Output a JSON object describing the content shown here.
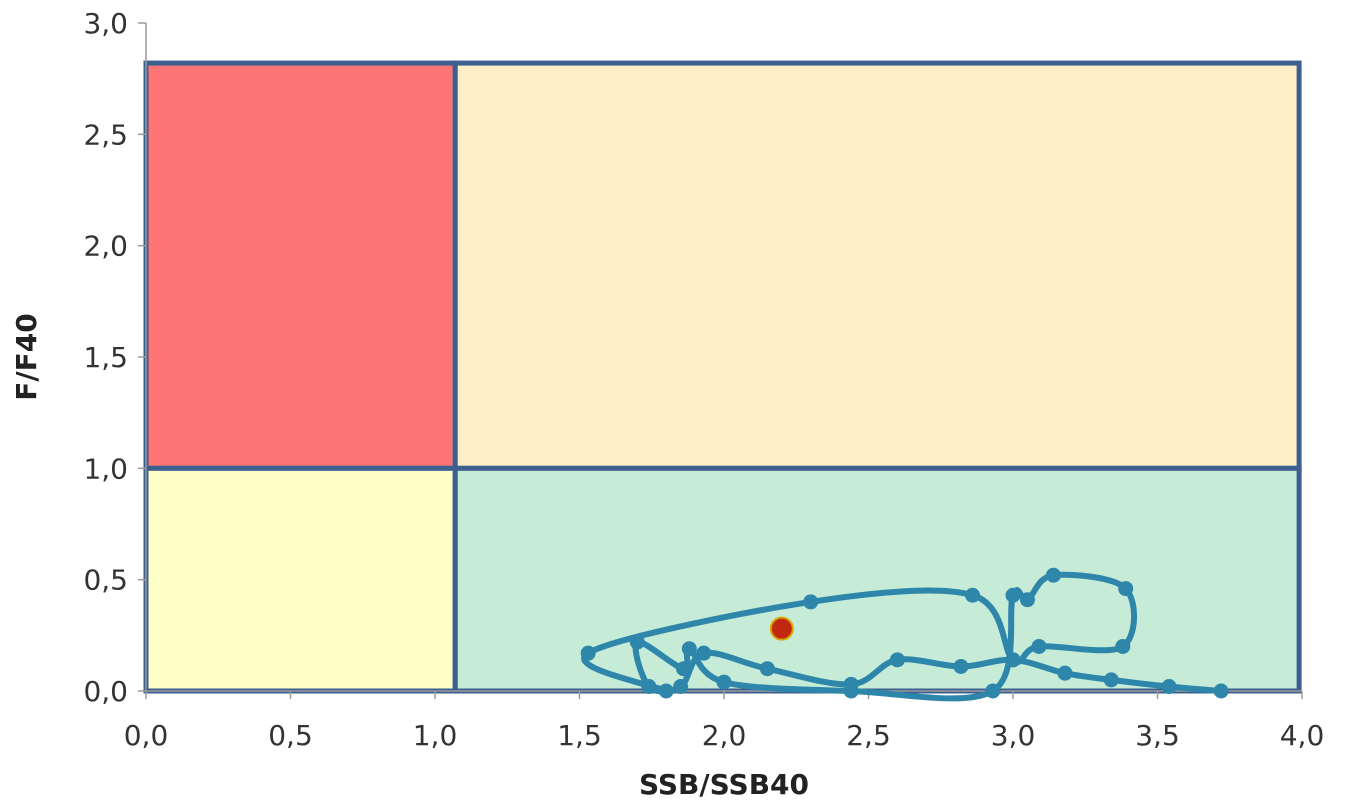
{
  "chart_data": {
    "type": "scatter",
    "title": "",
    "xlabel": "SSB/SSB40",
    "ylabel": "F/F40",
    "xlim": [
      0,
      4
    ],
    "ylim": [
      0,
      3
    ],
    "xticks": [
      "0,0",
      "0,5",
      "1,0",
      "1,5",
      "2,0",
      "2,5",
      "3,0",
      "3,5",
      "4,0"
    ],
    "yticks": [
      "0,0",
      "0,5",
      "1,0",
      "1,5",
      "2,0",
      "2,5",
      "3,0"
    ],
    "grid": false,
    "legend": "none",
    "reference_lines": {
      "ssb_ratio": 1.07,
      "f_ratio": 1.0
    },
    "zones": [
      {
        "name": "red",
        "x": [
          0,
          1.07
        ],
        "y": [
          1.0,
          2.82
        ],
        "color": "#ff7575"
      },
      {
        "name": "orange",
        "x": [
          1.07,
          3.99
        ],
        "y": [
          1.0,
          2.82
        ],
        "color": "#fdeec8"
      },
      {
        "name": "yellow",
        "x": [
          0,
          1.07
        ],
        "y": [
          0,
          1.0
        ],
        "color": "#ffffc8"
      },
      {
        "name": "green",
        "x": [
          1.07,
          3.99
        ],
        "y": [
          0,
          1.0
        ],
        "color": "#c6ebd7"
      }
    ],
    "series": [
      {
        "color": "#2e86ab",
        "points": [
          [
            3.72,
            0.0
          ],
          [
            3.54,
            0.02
          ],
          [
            3.34,
            0.05
          ],
          [
            3.18,
            0.08
          ],
          [
            3.0,
            0.14
          ],
          [
            2.82,
            0.11
          ],
          [
            2.6,
            0.14
          ],
          [
            2.44,
            0.03
          ],
          [
            2.15,
            0.1
          ],
          [
            1.93,
            0.17
          ],
          [
            1.85,
            0.02
          ],
          [
            1.74,
            0.02
          ],
          [
            1.7,
            0.22
          ],
          [
            1.86,
            0.1
          ],
          [
            1.88,
            0.19
          ],
          [
            2.0,
            0.04
          ],
          [
            2.44,
            0.0
          ],
          [
            2.93,
            0.0
          ],
          [
            3.0,
            0.43
          ],
          [
            3.05,
            0.41
          ],
          [
            3.14,
            0.52
          ],
          [
            3.39,
            0.46
          ],
          [
            3.38,
            0.2
          ],
          [
            3.09,
            0.2
          ],
          [
            3.0,
            0.14
          ],
          [
            2.86,
            0.43
          ],
          [
            2.3,
            0.4
          ],
          [
            1.53,
            0.17
          ],
          [
            1.8,
            0.0
          ]
        ]
      }
    ],
    "current_point": {
      "x": 2.2,
      "y": 0.28,
      "color": "#c0280f"
    }
  }
}
